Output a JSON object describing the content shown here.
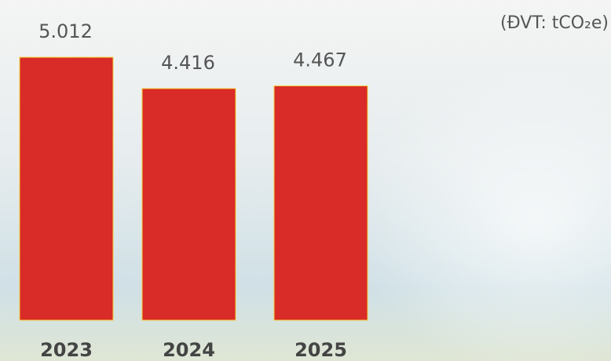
{
  "chart_data": {
    "type": "bar",
    "unit": "(ĐVT: tCO₂e)",
    "categories": [
      "2023",
      "2024",
      "2025"
    ],
    "values": [
      5012,
      4416,
      4467
    ],
    "value_labels": [
      "5.012",
      "4.416",
      "4.467"
    ],
    "color": "#d92b27"
  }
}
